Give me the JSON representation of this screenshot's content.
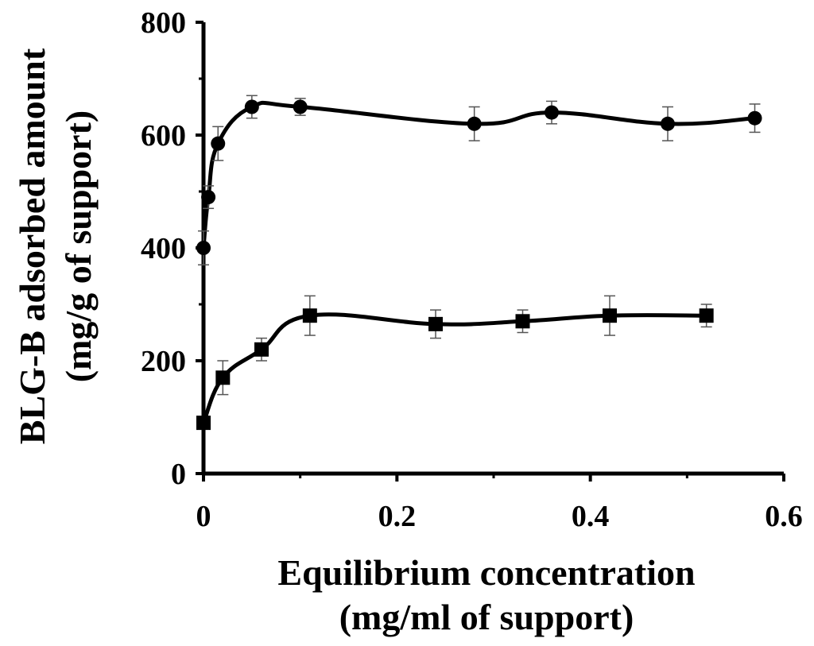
{
  "chart_data": {
    "type": "line",
    "xlabel": [
      "Equilibrium concentration",
      "(mg/ml of support)"
    ],
    "ylabel": [
      "BLG-B adsorbed amount",
      "(mg/g of support)"
    ],
    "xlim": [
      0,
      0.6
    ],
    "ylim": [
      0,
      800
    ],
    "x_ticks": [
      "0",
      "0.2",
      "0.4",
      "0.6"
    ],
    "y_ticks": [
      "0",
      "200",
      "400",
      "600",
      "800"
    ],
    "grid": false,
    "legend": "none",
    "series": [
      {
        "marker": "circle",
        "color": "#000000",
        "points": [
          {
            "x": 0.0,
            "y": 400,
            "err": 30
          },
          {
            "x": 0.005,
            "y": 490,
            "err": 20
          },
          {
            "x": 0.015,
            "y": 585,
            "err": 30
          },
          {
            "x": 0.05,
            "y": 650,
            "err": 20
          },
          {
            "x": 0.1,
            "y": 650,
            "err": 15
          },
          {
            "x": 0.28,
            "y": 620,
            "err": 30
          },
          {
            "x": 0.36,
            "y": 640,
            "err": 20
          },
          {
            "x": 0.48,
            "y": 620,
            "err": 30
          },
          {
            "x": 0.57,
            "y": 630,
            "err": 25
          }
        ]
      },
      {
        "marker": "square",
        "color": "#000000",
        "points": [
          {
            "x": 0.0,
            "y": 90,
            "err": 10
          },
          {
            "x": 0.02,
            "y": 170,
            "err": 30
          },
          {
            "x": 0.06,
            "y": 220,
            "err": 20
          },
          {
            "x": 0.11,
            "y": 280,
            "err": 35
          },
          {
            "x": 0.24,
            "y": 265,
            "err": 25
          },
          {
            "x": 0.33,
            "y": 270,
            "err": 20
          },
          {
            "x": 0.42,
            "y": 280,
            "err": 35
          },
          {
            "x": 0.52,
            "y": 280,
            "err": 20
          }
        ]
      }
    ]
  }
}
